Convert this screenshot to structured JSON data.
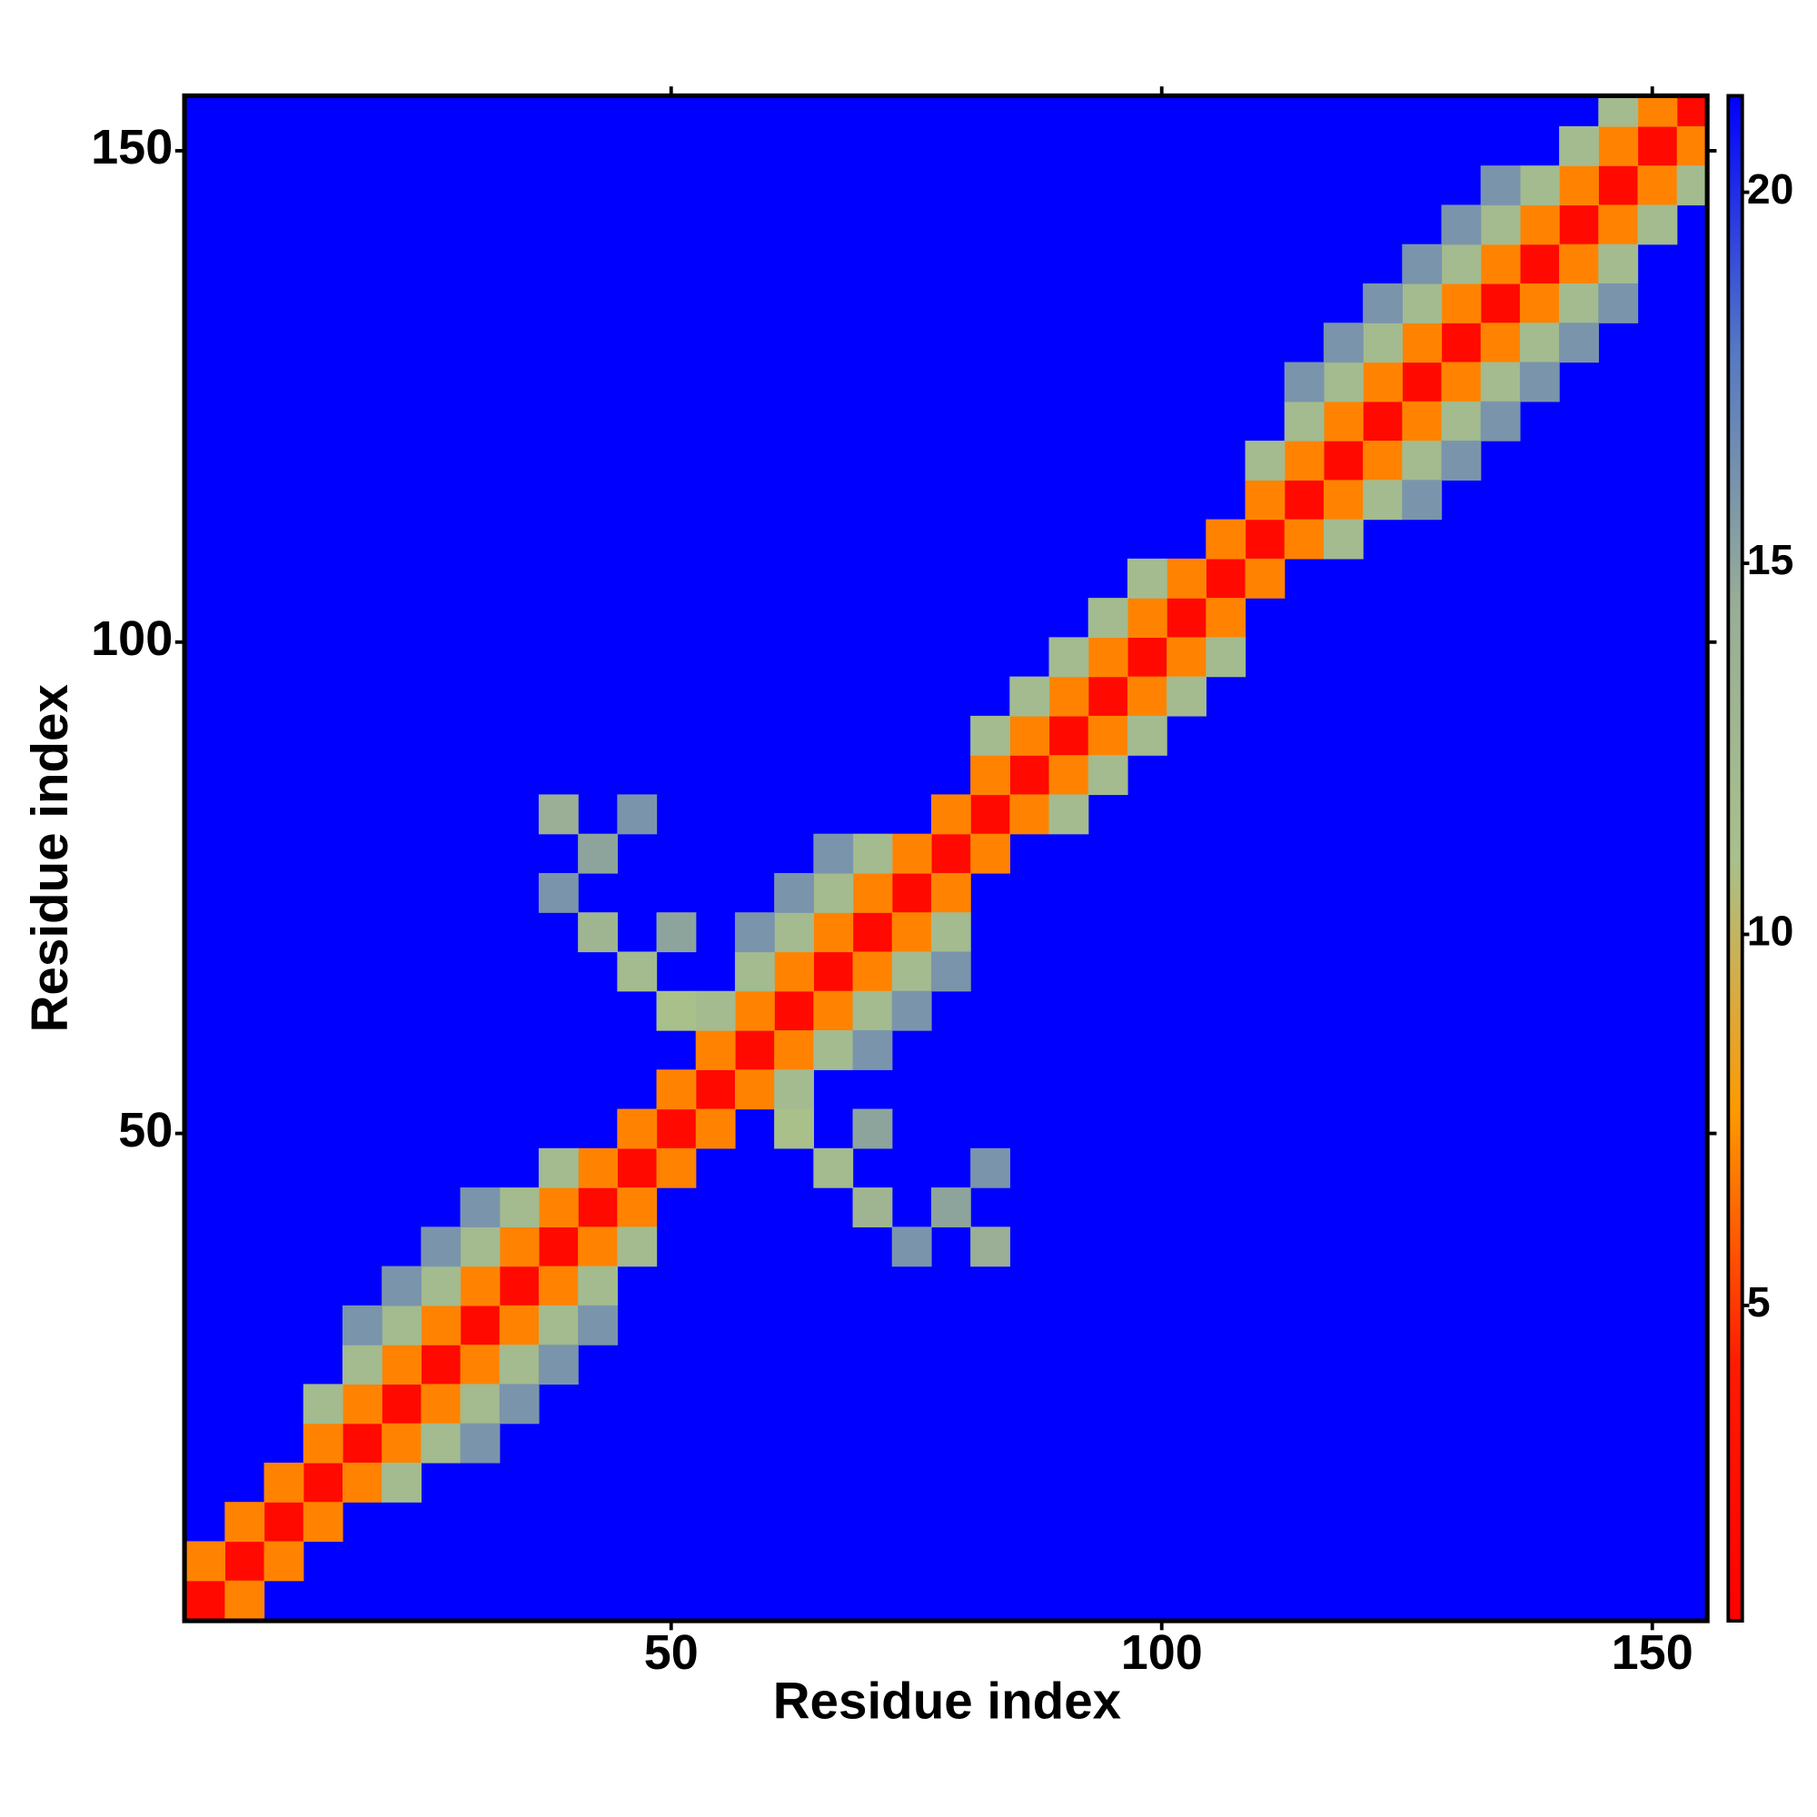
{
  "chart_data": {
    "type": "heatmap",
    "xlabel": "Residue index",
    "ylabel": "Residue index",
    "xlim": [
      0.4,
      155.6
    ],
    "ylim": [
      0.4,
      155.6
    ],
    "xticks": [
      50,
      100,
      150
    ],
    "yticks": [
      50,
      100,
      150
    ],
    "clim": [
      0.75,
      21.3
    ],
    "cticks": [
      5,
      10,
      15,
      20
    ],
    "colors": [
      "#ff0000",
      "#ff1a00",
      "#ff9900",
      "#a8c08c",
      "#98ad96",
      "#5578c4",
      "#0000ff"
    ],
    "cells": [
      [
        2.5,
        2.5,
        2
      ],
      [
        6.5,
        6.5,
        2
      ],
      [
        10.5,
        10.5,
        2
      ],
      [
        14.5,
        14.5,
        2
      ],
      [
        18.5,
        18.5,
        2
      ],
      [
        22.5,
        22.5,
        2
      ],
      [
        26.5,
        26.5,
        2
      ],
      [
        30.5,
        30.5,
        2
      ],
      [
        34.5,
        34.5,
        2
      ],
      [
        38.5,
        38.5,
        2
      ],
      [
        42.5,
        42.5,
        2
      ],
      [
        46.5,
        46.5,
        2
      ],
      [
        50.5,
        50.5,
        2
      ],
      [
        54.5,
        54.5,
        2
      ],
      [
        58.5,
        58.5,
        2
      ],
      [
        62.5,
        62.5,
        2
      ],
      [
        66.5,
        66.5,
        2
      ],
      [
        70.5,
        70.5,
        2
      ],
      [
        74.5,
        74.5,
        2
      ],
      [
        78.5,
        78.5,
        2
      ],
      [
        82.5,
        82.5,
        2
      ],
      [
        86.5,
        86.5,
        2
      ],
      [
        90.5,
        90.5,
        2
      ],
      [
        94.5,
        94.5,
        2
      ],
      [
        98.5,
        98.5,
        2
      ],
      [
        102.5,
        102.5,
        2
      ],
      [
        106.5,
        106.5,
        2
      ],
      [
        110.5,
        110.5,
        2
      ],
      [
        114.5,
        114.5,
        2
      ],
      [
        118.5,
        118.5,
        2
      ],
      [
        122.5,
        122.5,
        2
      ],
      [
        126.5,
        126.5,
        2
      ],
      [
        130.5,
        130.5,
        2
      ],
      [
        134.5,
        134.5,
        2
      ],
      [
        138.5,
        138.5,
        2
      ],
      [
        142.5,
        142.5,
        2
      ],
      [
        146.5,
        146.5,
        2
      ],
      [
        150.5,
        150.5,
        2
      ],
      [
        154.5,
        154.5,
        2
      ],
      [
        2.5,
        6.5,
        7
      ],
      [
        6.5,
        10.5,
        7
      ],
      [
        10.5,
        14.5,
        7
      ],
      [
        14.5,
        18.5,
        7
      ],
      [
        18.5,
        22.5,
        7
      ],
      [
        22.5,
        26.5,
        7
      ],
      [
        26.5,
        30.5,
        7
      ],
      [
        30.5,
        34.5,
        7
      ],
      [
        34.5,
        38.5,
        7
      ],
      [
        38.5,
        42.5,
        7
      ],
      [
        42.5,
        46.5,
        7
      ],
      [
        46.5,
        50.5,
        7
      ],
      [
        50.5,
        54.5,
        7
      ],
      [
        54.5,
        58.5,
        7
      ],
      [
        58.5,
        62.5,
        7
      ],
      [
        62.5,
        66.5,
        7
      ],
      [
        66.5,
        70.5,
        7
      ],
      [
        70.5,
        74.5,
        7
      ],
      [
        74.5,
        78.5,
        7
      ],
      [
        78.5,
        82.5,
        7
      ],
      [
        82.5,
        86.5,
        7
      ],
      [
        86.5,
        90.5,
        7
      ],
      [
        90.5,
        94.5,
        7
      ],
      [
        94.5,
        98.5,
        7
      ],
      [
        98.5,
        102.5,
        7
      ],
      [
        102.5,
        106.5,
        7
      ],
      [
        106.5,
        110.5,
        7
      ],
      [
        110.5,
        114.5,
        7
      ],
      [
        114.5,
        118.5,
        7
      ],
      [
        118.5,
        122.5,
        7
      ],
      [
        122.5,
        126.5,
        7
      ],
      [
        126.5,
        130.5,
        7
      ],
      [
        130.5,
        134.5,
        7
      ],
      [
        134.5,
        138.5,
        7
      ],
      [
        138.5,
        142.5,
        7
      ],
      [
        142.5,
        146.5,
        7
      ],
      [
        146.5,
        150.5,
        7
      ],
      [
        150.5,
        154.5,
        7
      ],
      [
        6.5,
        2.5,
        7
      ],
      [
        10.5,
        6.5,
        7
      ],
      [
        14.5,
        10.5,
        7
      ],
      [
        18.5,
        14.5,
        7
      ],
      [
        22.5,
        18.5,
        7
      ],
      [
        26.5,
        22.5,
        7
      ],
      [
        30.5,
        26.5,
        7
      ],
      [
        34.5,
        30.5,
        7
      ],
      [
        38.5,
        34.5,
        7
      ],
      [
        42.5,
        38.5,
        7
      ],
      [
        46.5,
        42.5,
        7
      ],
      [
        50.5,
        46.5,
        7
      ],
      [
        54.5,
        50.5,
        7
      ],
      [
        58.5,
        54.5,
        7
      ],
      [
        62.5,
        58.5,
        7
      ],
      [
        66.5,
        62.5,
        7
      ],
      [
        70.5,
        66.5,
        7
      ],
      [
        74.5,
        70.5,
        7
      ],
      [
        78.5,
        74.5,
        7
      ],
      [
        82.5,
        78.5,
        7
      ],
      [
        86.5,
        82.5,
        7
      ],
      [
        90.5,
        86.5,
        7
      ],
      [
        94.5,
        90.5,
        7
      ],
      [
        98.5,
        94.5,
        7
      ],
      [
        102.5,
        98.5,
        7
      ],
      [
        106.5,
        102.5,
        7
      ],
      [
        110.5,
        106.5,
        7
      ],
      [
        114.5,
        110.5,
        7
      ],
      [
        118.5,
        114.5,
        7
      ],
      [
        122.5,
        118.5,
        7
      ],
      [
        126.5,
        122.5,
        7
      ],
      [
        130.5,
        126.5,
        7
      ],
      [
        134.5,
        130.5,
        7
      ],
      [
        138.5,
        134.5,
        7
      ],
      [
        142.5,
        138.5,
        7
      ],
      [
        146.5,
        142.5,
        7
      ],
      [
        150.5,
        146.5,
        7
      ],
      [
        154.5,
        150.5,
        7
      ],
      [
        14.5,
        22.5,
        12
      ],
      [
        18.5,
        26.5,
        12
      ],
      [
        22.5,
        30.5,
        12
      ],
      [
        26.5,
        34.5,
        12
      ],
      [
        30.5,
        38.5,
        12
      ],
      [
        34.5,
        42.5,
        12
      ],
      [
        38.5,
        46.5,
        12
      ],
      [
        54.5,
        62.5,
        12
      ],
      [
        58.5,
        66.5,
        12
      ],
      [
        62.5,
        70.5,
        12
      ],
      [
        66.5,
        74.5,
        12
      ],
      [
        70.5,
        78.5,
        12
      ],
      [
        82.5,
        90.5,
        12
      ],
      [
        86.5,
        94.5,
        12
      ],
      [
        90.5,
        98.5,
        12
      ],
      [
        94.5,
        102.5,
        12
      ],
      [
        98.5,
        106.5,
        12
      ],
      [
        110.5,
        118.5,
        12
      ],
      [
        114.5,
        122.5,
        12
      ],
      [
        118.5,
        126.5,
        12
      ],
      [
        122.5,
        130.5,
        12
      ],
      [
        126.5,
        134.5,
        12
      ],
      [
        130.5,
        138.5,
        12
      ],
      [
        134.5,
        142.5,
        12
      ],
      [
        138.5,
        146.5,
        12
      ],
      [
        142.5,
        150.5,
        12
      ],
      [
        146.5,
        154.5,
        12
      ],
      [
        22.5,
        14.5,
        12
      ],
      [
        26.5,
        18.5,
        12
      ],
      [
        30.5,
        22.5,
        12
      ],
      [
        34.5,
        26.5,
        12
      ],
      [
        38.5,
        30.5,
        12
      ],
      [
        42.5,
        34.5,
        12
      ],
      [
        46.5,
        38.5,
        12
      ],
      [
        62.5,
        54.5,
        12
      ],
      [
        66.5,
        58.5,
        12
      ],
      [
        70.5,
        62.5,
        12
      ],
      [
        74.5,
        66.5,
        12
      ],
      [
        78.5,
        70.5,
        12
      ],
      [
        90.5,
        82.5,
        12
      ],
      [
        94.5,
        86.5,
        12
      ],
      [
        98.5,
        90.5,
        12
      ],
      [
        102.5,
        94.5,
        12
      ],
      [
        106.5,
        98.5,
        12
      ],
      [
        118.5,
        110.5,
        12
      ],
      [
        122.5,
        114.5,
        12
      ],
      [
        126.5,
        118.5,
        12
      ],
      [
        130.5,
        122.5,
        12
      ],
      [
        134.5,
        126.5,
        12
      ],
      [
        138.5,
        130.5,
        12
      ],
      [
        142.5,
        134.5,
        12
      ],
      [
        146.5,
        138.5,
        12
      ],
      [
        150.5,
        142.5,
        12
      ],
      [
        154.5,
        146.5,
        12
      ],
      [
        18.5,
        30.5,
        16
      ],
      [
        22.5,
        34.5,
        16
      ],
      [
        26.5,
        38.5,
        16
      ],
      [
        30.5,
        42.5,
        16
      ],
      [
        58.5,
        70.5,
        16
      ],
      [
        62.5,
        74.5,
        16
      ],
      [
        66.5,
        78.5,
        16
      ],
      [
        114.5,
        126.5,
        16
      ],
      [
        118.5,
        130.5,
        16
      ],
      [
        122.5,
        134.5,
        16
      ],
      [
        126.5,
        138.5,
        16
      ],
      [
        130.5,
        142.5,
        16
      ],
      [
        134.5,
        146.5,
        16
      ],
      [
        30.5,
        18.5,
        16
      ],
      [
        34.5,
        22.5,
        16
      ],
      [
        38.5,
        26.5,
        16
      ],
      [
        42.5,
        30.5,
        16
      ],
      [
        70.5,
        58.5,
        16
      ],
      [
        74.5,
        62.5,
        16
      ],
      [
        78.5,
        66.5,
        16
      ],
      [
        126.5,
        114.5,
        16
      ],
      [
        130.5,
        118.5,
        16
      ],
      [
        134.5,
        122.5,
        16
      ],
      [
        138.5,
        126.5,
        16
      ],
      [
        142.5,
        130.5,
        16
      ],
      [
        146.5,
        134.5,
        16
      ],
      [
        38.5,
        82.5,
        14
      ],
      [
        42.5,
        78.5,
        15
      ],
      [
        46.5,
        82.5,
        16
      ],
      [
        42.5,
        70.5,
        13
      ],
      [
        46.5,
        66.5,
        12
      ],
      [
        50.5,
        62.5,
        11
      ],
      [
        38.5,
        74.5,
        16
      ],
      [
        50.5,
        70.5,
        15
      ],
      [
        82.5,
        38.5,
        14
      ],
      [
        78.5,
        42.5,
        15
      ],
      [
        82.5,
        46.5,
        16
      ],
      [
        70.5,
        42.5,
        13
      ],
      [
        66.5,
        46.5,
        12
      ],
      [
        62.5,
        50.5,
        11
      ],
      [
        74.5,
        38.5,
        16
      ],
      [
        70.5,
        50.5,
        15
      ]
    ]
  }
}
